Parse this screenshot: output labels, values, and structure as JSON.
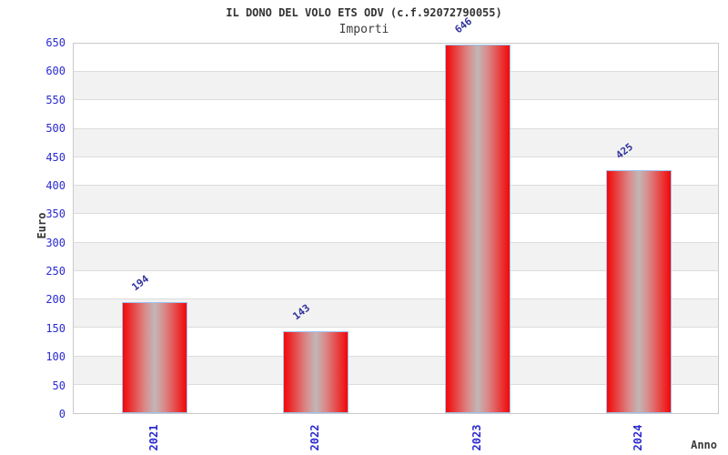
{
  "chart_data": {
    "type": "bar",
    "title": "IL DONO DEL VOLO ETS ODV (c.f.92072790055)",
    "subtitle": "Importi",
    "xlabel": "Anno",
    "ylabel": "Euro",
    "categories": [
      "2021",
      "2022",
      "2023",
      "2024"
    ],
    "values": [
      194,
      143,
      646,
      425
    ],
    "ylim": [
      0,
      650
    ],
    "ytick_step": 50,
    "grid": true,
    "band_pattern": "alternating",
    "legend": "none",
    "colors": {
      "bar_edge_red": "#f20808",
      "bar_mid_red": "#da8a8a",
      "bar_center_gray": "#c2b6b6",
      "bar_border_blue": "#9dc2ee",
      "tick_label_blue": "#2a2ad0",
      "value_label_navy": "#31319e",
      "band_gray": "#f2f2f2",
      "grid_line_gray": "#dcdcdc",
      "plot_border_gray": "#c9c9c9",
      "title_gray": "#333333"
    }
  }
}
